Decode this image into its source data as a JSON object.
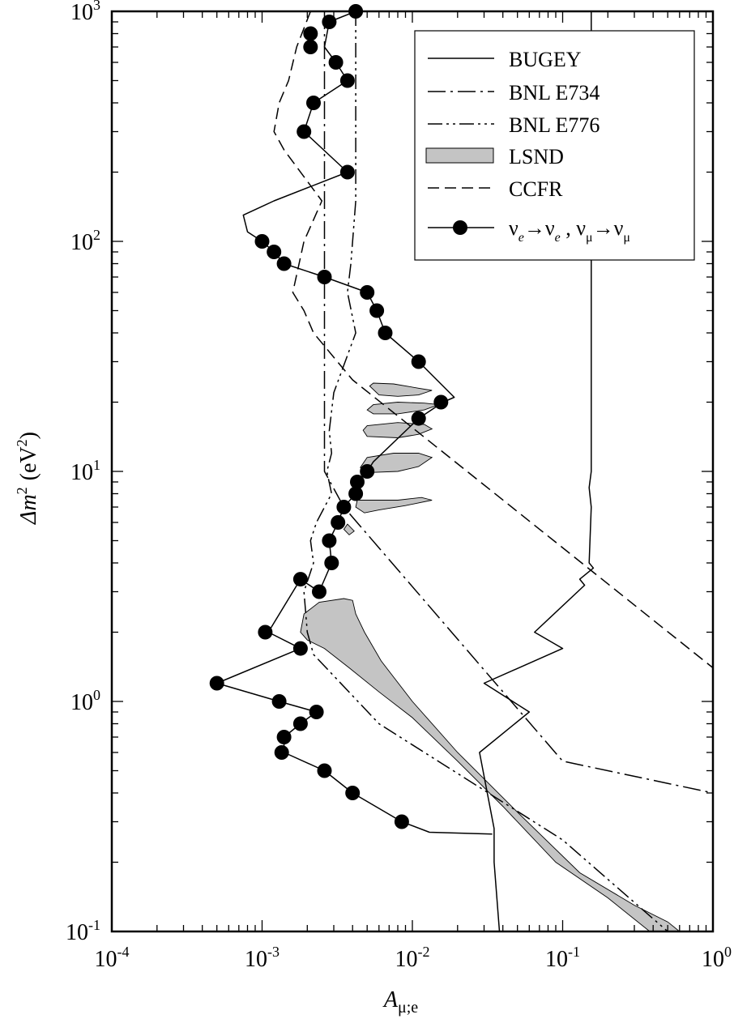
{
  "chart_data": {
    "type": "line",
    "x_scale": "log",
    "y_scale": "log",
    "xlim": [
      0.0001,
      1
    ],
    "ylim": [
      0.1,
      1000
    ],
    "xlabel": {
      "main": "A",
      "sub": "μ;e"
    },
    "ylabel": {
      "main": "Δm",
      "sup": "2",
      "unit": "(eV",
      "unit_sup": "2",
      "unit_close": ")"
    },
    "x_ticks": [
      {
        "value": 0.0001,
        "base": "10",
        "exp": "-4"
      },
      {
        "value": 0.001,
        "base": "10",
        "exp": "-3"
      },
      {
        "value": 0.01,
        "base": "10",
        "exp": "-2"
      },
      {
        "value": 0.1,
        "base": "10",
        "exp": "-1"
      },
      {
        "value": 1,
        "base": "10",
        "exp": "0"
      }
    ],
    "y_ticks": [
      {
        "value": 0.1,
        "base": "10",
        "exp": "-1"
      },
      {
        "value": 1,
        "base": "10",
        "exp": "0"
      },
      {
        "value": 10,
        "base": "10",
        "exp": "1"
      },
      {
        "value": 100,
        "base": "10",
        "exp": "2"
      },
      {
        "value": 1000,
        "base": "10",
        "exp": "3"
      }
    ],
    "legend_position": "top-right",
    "legend": [
      {
        "label": "BUGEY",
        "style": "solid"
      },
      {
        "label": "BNL E734",
        "style": "dashdot"
      },
      {
        "label": "BNL E776",
        "style": "dashdotdot"
      },
      {
        "label": "LSND",
        "style": "band"
      },
      {
        "label": "CCFR",
        "style": "dashed"
      },
      {
        "label": "νe→νe , νμ→νμ",
        "style": "dots",
        "parts": [
          "ν",
          "e",
          "→ν",
          "e",
          " , ν",
          "μ",
          "→ν",
          "μ"
        ]
      }
    ],
    "series": [
      {
        "name": "BUGEY",
        "style": "solid",
        "points": [
          [
            0.155,
            1000
          ],
          [
            0.155,
            100
          ],
          [
            0.155,
            40
          ],
          [
            0.155,
            10
          ],
          [
            0.15,
            8.5
          ],
          [
            0.155,
            7
          ],
          [
            0.15,
            4
          ],
          [
            0.16,
            3.8
          ],
          [
            0.13,
            3.4
          ],
          [
            0.14,
            3.2
          ],
          [
            0.065,
            2
          ],
          [
            0.1,
            1.7
          ],
          [
            0.03,
            1.2
          ],
          [
            0.06,
            0.9
          ],
          [
            0.028,
            0.6
          ],
          [
            0.035,
            0.28
          ],
          [
            0.035,
            0.2
          ],
          [
            0.038,
            0.1
          ]
        ]
      },
      {
        "name": "BNL E734",
        "style": "dashdot",
        "points": [
          [
            0.0026,
            1000
          ],
          [
            0.0026,
            400
          ],
          [
            0.0026,
            100
          ],
          [
            0.0026,
            70
          ],
          [
            0.0026,
            10
          ],
          [
            0.0035,
            7
          ],
          [
            0.1,
            0.55
          ],
          [
            1.0,
            0.4
          ]
        ]
      },
      {
        "name": "BNL E776",
        "style": "dashdotdot",
        "points": [
          [
            0.0042,
            1000
          ],
          [
            0.0042,
            150
          ],
          [
            0.0039,
            80
          ],
          [
            0.0037,
            60
          ],
          [
            0.0042,
            40
          ],
          [
            0.003,
            22
          ],
          [
            0.0028,
            15
          ],
          [
            0.0029,
            12
          ],
          [
            0.0027,
            10
          ],
          [
            0.0029,
            8
          ],
          [
            0.0023,
            6
          ],
          [
            0.0021,
            5
          ],
          [
            0.0022,
            4
          ],
          [
            0.0019,
            3
          ],
          [
            0.002,
            2
          ],
          [
            0.0022,
            1.6
          ],
          [
            0.006,
            0.8
          ],
          [
            0.1,
            0.25
          ],
          [
            0.5,
            0.1
          ]
        ]
      },
      {
        "name": "CCFR",
        "style": "dashed",
        "points": [
          [
            0.0021,
            1000
          ],
          [
            0.0017,
            700
          ],
          [
            0.0015,
            500
          ],
          [
            0.0013,
            400
          ],
          [
            0.0012,
            300
          ],
          [
            0.0014,
            250
          ],
          [
            0.0025,
            150
          ],
          [
            0.0019,
            100
          ],
          [
            0.0016,
            60
          ],
          [
            0.0019,
            50
          ],
          [
            0.0022,
            40
          ],
          [
            0.004,
            25
          ],
          [
            1.0,
            1.4
          ]
        ]
      },
      {
        "name": "νe→νe , νμ→νμ",
        "style": "dots",
        "line": [
          [
            0.0042,
            1000
          ],
          [
            0.0028,
            900
          ],
          [
            0.0026,
            700
          ],
          [
            0.0031,
            600
          ],
          [
            0.0037,
            500
          ],
          [
            0.0022,
            400
          ],
          [
            0.0019,
            300
          ],
          [
            0.0037,
            200
          ],
          [
            0.0012,
            150
          ],
          [
            0.00075,
            130
          ],
          [
            0.0008,
            110
          ],
          [
            0.001,
            100
          ],
          [
            0.0012,
            90
          ],
          [
            0.0014,
            80
          ],
          [
            0.0026,
            70
          ],
          [
            0.005,
            60
          ],
          [
            0.0058,
            50
          ],
          [
            0.0066,
            40
          ],
          [
            0.011,
            30
          ],
          [
            0.019,
            21
          ],
          [
            0.016,
            20
          ],
          [
            0.011,
            17
          ],
          [
            0.0055,
            11
          ],
          [
            0.005,
            10
          ],
          [
            0.0043,
            9
          ],
          [
            0.0042,
            8
          ],
          [
            0.0035,
            7
          ],
          [
            0.0032,
            6
          ],
          [
            0.0028,
            5
          ],
          [
            0.0029,
            4
          ],
          [
            0.0024,
            3
          ],
          [
            0.0018,
            3.4
          ],
          [
            0.0011,
            2
          ],
          [
            0.0018,
            1.7
          ],
          [
            0.0005,
            1.2
          ],
          [
            0.0013,
            1.0
          ],
          [
            0.0023,
            0.9
          ],
          [
            0.0018,
            0.8
          ],
          [
            0.0014,
            0.7
          ],
          [
            0.0014,
            0.6
          ],
          [
            0.0026,
            0.5
          ],
          [
            0.004,
            0.4
          ],
          [
            0.0085,
            0.3
          ],
          [
            0.013,
            0.27
          ],
          [
            0.034,
            0.265
          ]
        ],
        "markers": [
          [
            0.0042,
            1000
          ],
          [
            0.0028,
            900
          ],
          [
            0.0021,
            800
          ],
          [
            0.0021,
            700
          ],
          [
            0.0031,
            600
          ],
          [
            0.0037,
            500
          ],
          [
            0.0022,
            400
          ],
          [
            0.0019,
            300
          ],
          [
            0.0037,
            200
          ],
          [
            0.001,
            100
          ],
          [
            0.0012,
            90
          ],
          [
            0.0014,
            80
          ],
          [
            0.0026,
            70
          ],
          [
            0.005,
            60
          ],
          [
            0.0058,
            50
          ],
          [
            0.0066,
            40
          ],
          [
            0.011,
            30
          ],
          [
            0.0155,
            20
          ],
          [
            0.011,
            17
          ],
          [
            0.005,
            10
          ],
          [
            0.0043,
            9
          ],
          [
            0.0042,
            8
          ],
          [
            0.0035,
            7
          ],
          [
            0.0032,
            6
          ],
          [
            0.0028,
            5
          ],
          [
            0.0029,
            4
          ],
          [
            0.0018,
            3.4
          ],
          [
            0.0024,
            3
          ],
          [
            0.00105,
            2
          ],
          [
            0.0018,
            1.7
          ],
          [
            0.0005,
            1.2
          ],
          [
            0.0013,
            1.0
          ],
          [
            0.0023,
            0.9
          ],
          [
            0.0018,
            0.8
          ],
          [
            0.0014,
            0.7
          ],
          [
            0.00135,
            0.6
          ],
          [
            0.0026,
            0.5
          ],
          [
            0.004,
            0.4
          ],
          [
            0.0085,
            0.3
          ]
        ]
      }
    ],
    "lsnd_regions": [
      [
        [
          0.0018,
          2.0
        ],
        [
          0.0019,
          2.4
        ],
        [
          0.0024,
          2.7
        ],
        [
          0.0035,
          2.8
        ],
        [
          0.004,
          2.75
        ],
        [
          0.0042,
          2.4
        ],
        [
          0.0048,
          2.0
        ],
        [
          0.0062,
          1.5
        ],
        [
          0.01,
          1.0
        ],
        [
          0.02,
          0.6
        ],
        [
          0.05,
          0.33
        ],
        [
          0.13,
          0.18
        ],
        [
          0.3,
          0.13
        ],
        [
          0.5,
          0.11
        ],
        [
          0.6,
          0.1
        ],
        [
          0.38,
          0.1
        ],
        [
          0.2,
          0.14
        ],
        [
          0.09,
          0.2
        ],
        [
          0.04,
          0.35
        ],
        [
          0.02,
          0.55
        ],
        [
          0.01,
          0.85
        ],
        [
          0.006,
          1.1
        ],
        [
          0.0038,
          1.4
        ],
        [
          0.0026,
          1.7
        ],
        [
          0.002,
          1.85
        ]
      ],
      [
        [
          0.0052,
          23.5
        ],
        [
          0.0055,
          24.2
        ],
        [
          0.0075,
          24
        ],
        [
          0.011,
          23
        ],
        [
          0.0135,
          22.5
        ],
        [
          0.011,
          21.5
        ],
        [
          0.008,
          21.2
        ],
        [
          0.006,
          21.5
        ]
      ],
      [
        [
          0.005,
          18.5
        ],
        [
          0.0055,
          19.5
        ],
        [
          0.008,
          20
        ],
        [
          0.012,
          19.8
        ],
        [
          0.015,
          19.5
        ],
        [
          0.012,
          18.5
        ],
        [
          0.008,
          17.8
        ],
        [
          0.0055,
          17.8
        ]
      ],
      [
        [
          0.0047,
          15.1
        ],
        [
          0.005,
          15.8
        ],
        [
          0.008,
          16.3
        ],
        [
          0.012,
          16
        ],
        [
          0.0135,
          15.3
        ],
        [
          0.011,
          14.5
        ],
        [
          0.008,
          14
        ],
        [
          0.005,
          14.2
        ]
      ],
      [
        [
          0.0045,
          10.4
        ],
        [
          0.005,
          11.5
        ],
        [
          0.0075,
          12
        ],
        [
          0.011,
          12
        ],
        [
          0.0135,
          11.5
        ],
        [
          0.011,
          10.5
        ],
        [
          0.008,
          10
        ],
        [
          0.0055,
          9.9
        ]
      ],
      [
        [
          0.0042,
          7.0
        ],
        [
          0.0043,
          7.5
        ],
        [
          0.008,
          7.5
        ],
        [
          0.0115,
          7.7
        ],
        [
          0.0135,
          7.5
        ],
        [
          0.009,
          7.1
        ],
        [
          0.006,
          6.8
        ],
        [
          0.0048,
          6.6
        ]
      ],
      [
        [
          0.0035,
          5.6
        ],
        [
          0.0037,
          5.9
        ],
        [
          0.0041,
          5.5
        ],
        [
          0.0038,
          5.3
        ]
      ]
    ]
  }
}
